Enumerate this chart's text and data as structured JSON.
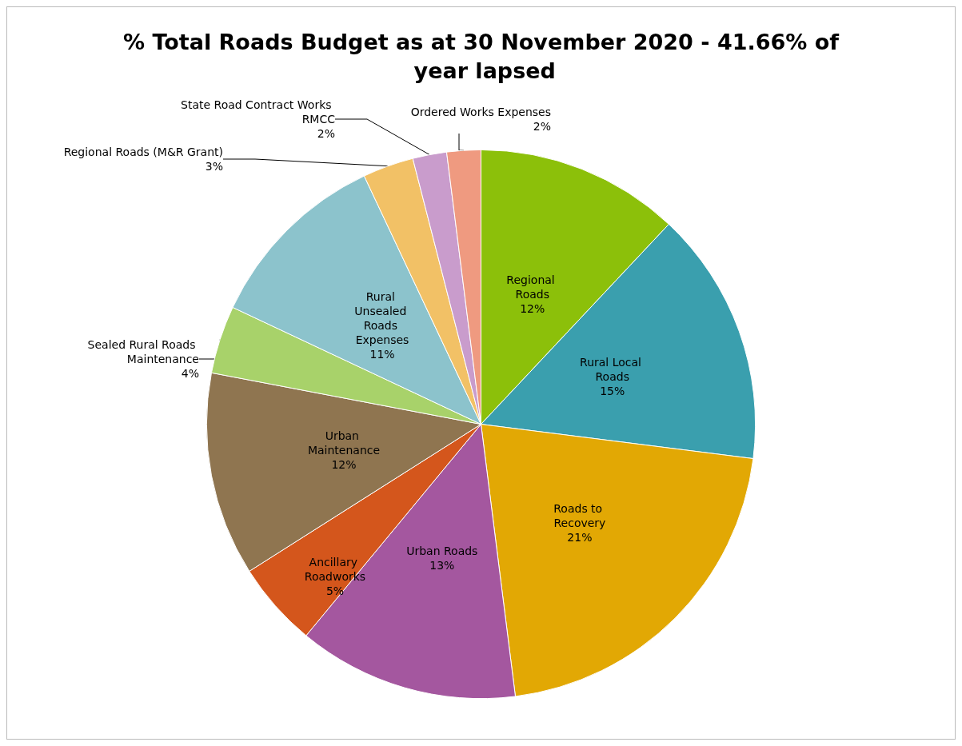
{
  "chart_data": {
    "type": "pie",
    "title": "% Total Roads Budget as at 30 November 2020 - 41.66% of year lapsed",
    "categories": [
      "Regional Roads",
      "Rural Local Roads",
      "Roads to Recovery",
      "Urban Roads",
      "Ancillary Roadworks",
      "Urban Maintenance",
      "Sealed Rural Roads Maintenance",
      "Rural Unsealed Roads Expenses",
      "Regional Roads (M&R Grant)",
      "State Road Contract Works RMCC",
      "Ordered Works Expenses"
    ],
    "values": [
      12,
      15,
      21,
      13,
      5,
      12,
      4,
      11,
      3,
      2,
      2
    ],
    "colors": [
      "#8cc00a",
      "#3a9fae",
      "#e2a804",
      "#a4579f",
      "#d4561c",
      "#8f7550",
      "#a8d26a",
      "#8cc3cc",
      "#f2c166",
      "#c99ccc",
      "#ef9a80"
    ],
    "legend": false,
    "value_labels": [
      "12%",
      "15%",
      "21%",
      "13%",
      "5%",
      "12%",
      "4%",
      "11%",
      "3%",
      "2%",
      "2%"
    ]
  }
}
